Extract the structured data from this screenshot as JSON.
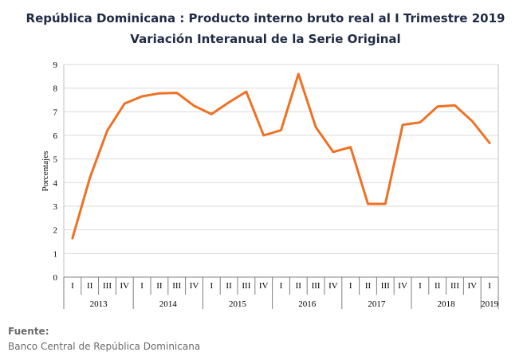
{
  "chart_data": {
    "type": "line",
    "title": "República Dominicana : Producto interno bruto real al I Trimestre 2019",
    "subtitle": "Variación Interanual de la Serie Original",
    "ylabel": "Porcentajes",
    "ylim": [
      0,
      9
    ],
    "yticks": [
      "0",
      "1",
      "2",
      "3",
      "4",
      "5",
      "6",
      "7",
      "8",
      "9"
    ],
    "quarters": [
      "I",
      "II",
      "III",
      "IV",
      "I",
      "II",
      "III",
      "IV",
      "I",
      "II",
      "III",
      "IV",
      "I",
      "II",
      "III",
      "IV",
      "I",
      "II",
      "III",
      "IV",
      "I",
      "II",
      "III",
      "IV",
      "I"
    ],
    "years": [
      {
        "label": "2013",
        "count": 4
      },
      {
        "label": "2014",
        "count": 4
      },
      {
        "label": "2015",
        "count": 4
      },
      {
        "label": "2016",
        "count": 4
      },
      {
        "label": "2017",
        "count": 4
      },
      {
        "label": "2018",
        "count": 4
      },
      {
        "label": "2019",
        "count": 1
      }
    ],
    "series": [
      {
        "values": [
          1.65,
          4.2,
          6.2,
          7.35,
          7.65,
          7.78,
          7.8,
          7.25,
          6.9,
          7.4,
          7.85,
          6.0,
          6.22,
          8.6,
          6.35,
          5.3,
          5.5,
          3.1,
          3.1,
          6.45,
          6.55,
          7.22,
          7.27,
          6.6,
          5.68
        ],
        "color": "#ee7124"
      }
    ],
    "grid": true
  },
  "source": {
    "label": "Fuente:",
    "value": "Banco Central de República Dominicana"
  }
}
